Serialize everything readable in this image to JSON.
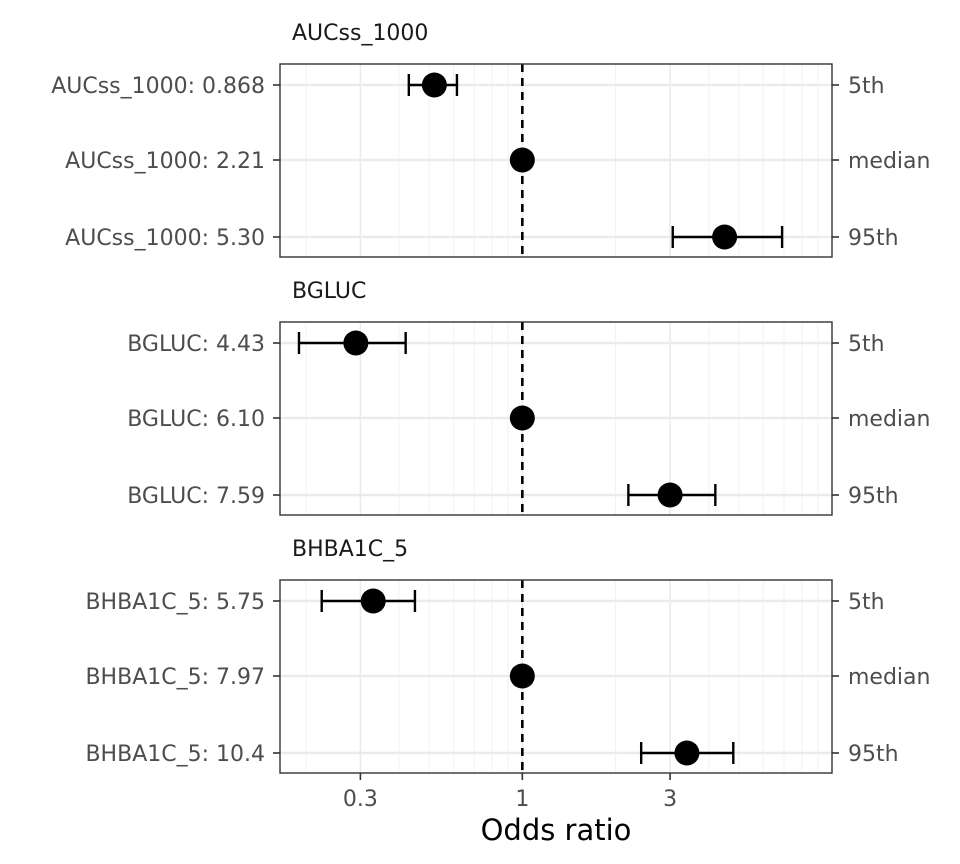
{
  "chart_data": {
    "type": "forest",
    "xlabel": "Odds ratio",
    "x_scale": "log",
    "xlim": [
      0.165,
      10.0
    ],
    "x_ticks": [
      {
        "value": 0.3,
        "label": "0.3"
      },
      {
        "value": 1,
        "label": "1"
      },
      {
        "value": 3,
        "label": "3"
      }
    ],
    "reference_line": 1,
    "colors": {
      "point": "#000000",
      "panel_border": "#333333",
      "grid_major": "#ebebeb",
      "grid_minor": "#f2f2f2",
      "ref_line": "#000000"
    },
    "panels": [
      {
        "title": "AUCss_1000",
        "rows": [
          {
            "label": "AUCss_1000: 0.868",
            "quantile": "5th",
            "or": 0.52,
            "lo": 0.43,
            "hi": 0.615
          },
          {
            "label": "AUCss_1000: 2.21",
            "quantile": "median",
            "or": 1.0,
            "lo": 1.0,
            "hi": 1.0
          },
          {
            "label": "AUCss_1000: 5.30",
            "quantile": "95th",
            "or": 4.5,
            "lo": 3.06,
            "hi": 6.9
          }
        ]
      },
      {
        "title": "BGLUC",
        "rows": [
          {
            "label": "BGLUC: 4.43",
            "quantile": "5th",
            "or": 0.29,
            "lo": 0.19,
            "hi": 0.42
          },
          {
            "label": "BGLUC: 6.10",
            "quantile": "median",
            "or": 1.0,
            "lo": 1.0,
            "hi": 1.0
          },
          {
            "label": "BGLUC: 7.59",
            "quantile": "95th",
            "or": 3.0,
            "lo": 2.2,
            "hi": 4.2
          }
        ]
      },
      {
        "title": "BHBA1C_5",
        "rows": [
          {
            "label": "BHBA1C_5: 5.75",
            "quantile": "5th",
            "or": 0.33,
            "lo": 0.225,
            "hi": 0.45
          },
          {
            "label": "BHBA1C_5: 7.97",
            "quantile": "median",
            "or": 1.0,
            "lo": 1.0,
            "hi": 1.0
          },
          {
            "label": "BHBA1C_5: 10.4",
            "quantile": "95th",
            "or": 3.4,
            "lo": 2.42,
            "hi": 4.8
          }
        ]
      }
    ]
  }
}
